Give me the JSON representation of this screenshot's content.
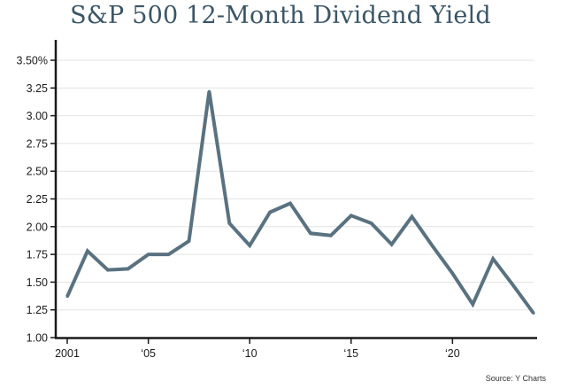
{
  "chart_data": {
    "type": "line",
    "title": "S&P 500 12-Month Dividend Yield",
    "source": "Source: Y Charts",
    "x": [
      2001,
      2002,
      2003,
      2004,
      2005,
      2006,
      2007,
      2008,
      2009,
      2010,
      2011,
      2012,
      2013,
      2014,
      2015,
      2016,
      2017,
      2018,
      2019,
      2020,
      2021,
      2022,
      2023,
      2024
    ],
    "series": [
      {
        "values": [
          1.37,
          1.78,
          1.61,
          1.62,
          1.75,
          1.75,
          1.87,
          3.22,
          2.03,
          1.83,
          2.13,
          2.21,
          1.94,
          1.92,
          2.1,
          2.03,
          1.84,
          2.09,
          1.83,
          1.58,
          1.3,
          1.71,
          1.47,
          1.22
        ]
      }
    ],
    "xlim": [
      2001,
      2024
    ],
    "ylim": [
      1.0,
      3.5
    ],
    "x_ticks": [
      {
        "value": 2001,
        "label": "2001"
      },
      {
        "value": 2005,
        "label": "‘05"
      },
      {
        "value": 2010,
        "label": "‘10"
      },
      {
        "value": 2015,
        "label": "‘15"
      },
      {
        "value": 2020,
        "label": "‘20"
      }
    ],
    "y_ticks": [
      {
        "value": 1.0,
        "label": "1.00"
      },
      {
        "value": 1.25,
        "label": "1.25"
      },
      {
        "value": 1.5,
        "label": "1.50"
      },
      {
        "value": 1.75,
        "label": "1.75"
      },
      {
        "value": 2.0,
        "label": "2.00"
      },
      {
        "value": 2.25,
        "label": "2.25"
      },
      {
        "value": 2.5,
        "label": "2.50"
      },
      {
        "value": 2.75,
        "label": "2.75"
      },
      {
        "value": 3.0,
        "label": "3.00"
      },
      {
        "value": 3.25,
        "label": "3.25"
      },
      {
        "value": 3.5,
        "label": "3.50%"
      }
    ],
    "grid": true,
    "line_color": "#5a7280",
    "title_color": "#3b5566"
  }
}
